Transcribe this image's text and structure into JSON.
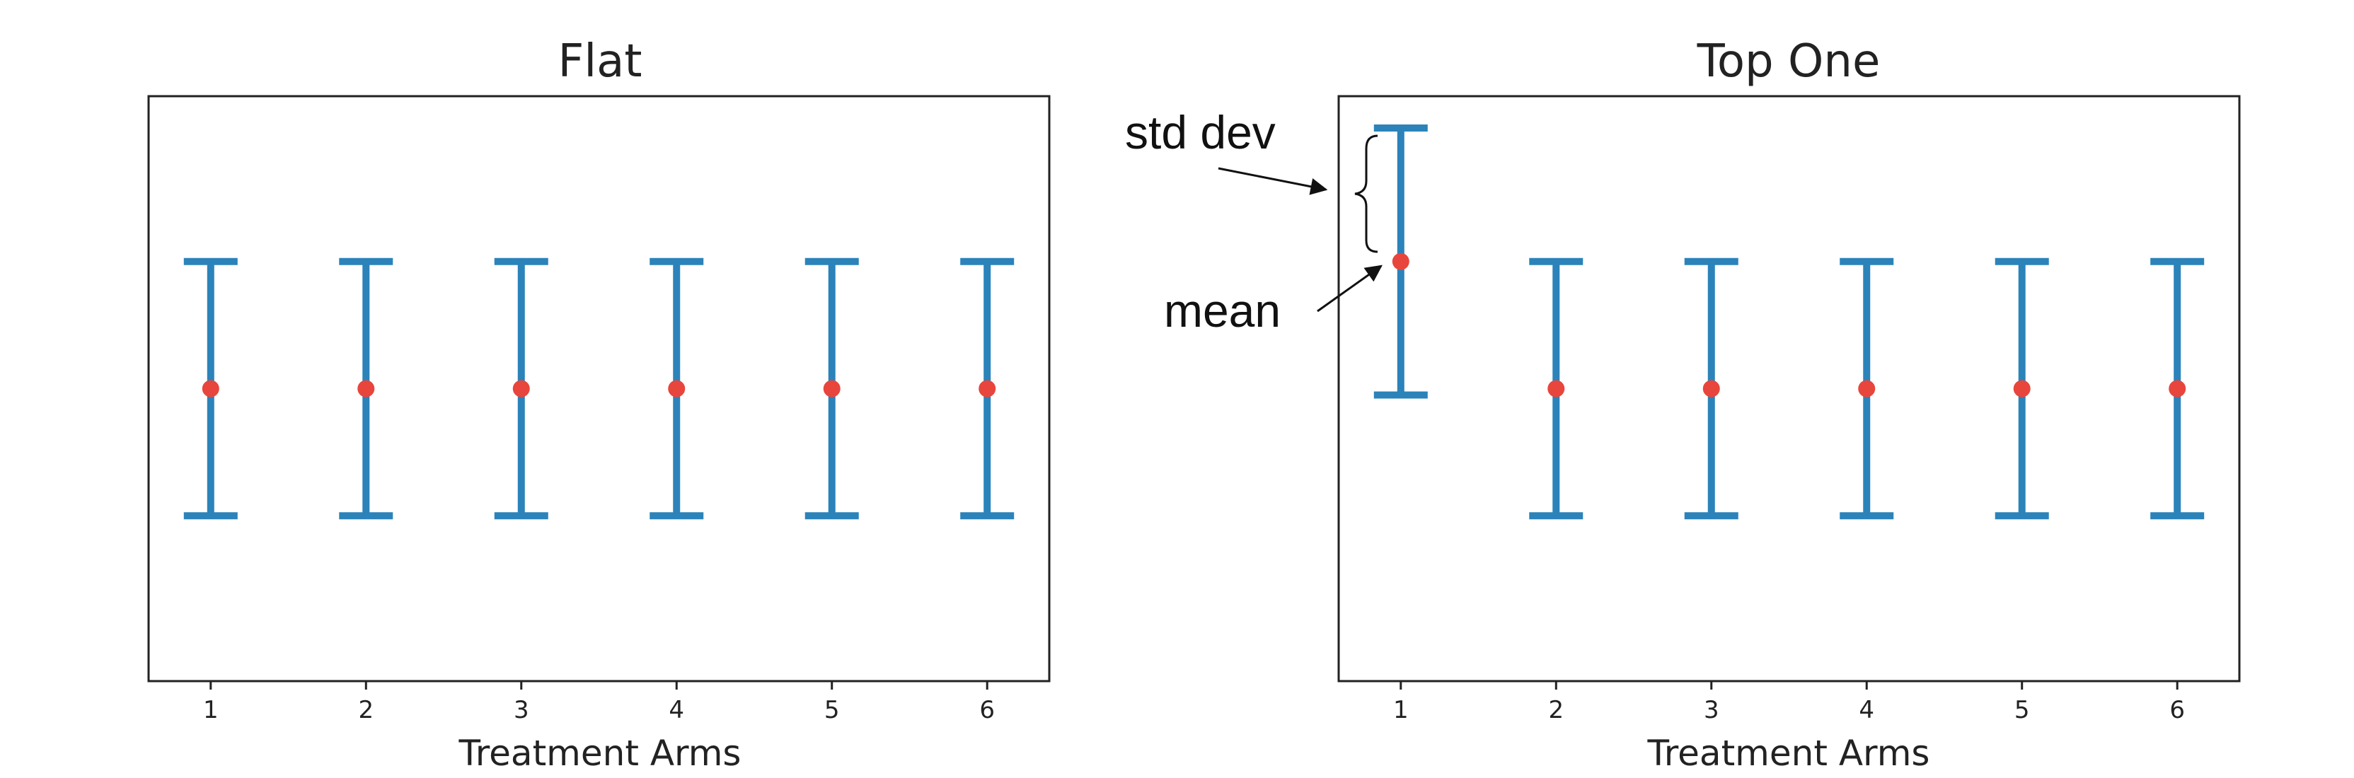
{
  "chart_data": [
    {
      "type": "errorbar",
      "title": "Flat",
      "xlabel": "Treatment Arms",
      "ylabel": "",
      "categories": [
        "1",
        "2",
        "3",
        "4",
        "5",
        "6"
      ],
      "mean": [
        0,
        0,
        0,
        0,
        0,
        0
      ],
      "std_dev": [
        1,
        1,
        1,
        1,
        1,
        1
      ],
      "ylim": [
        -2.3,
        2.3
      ],
      "grid": false,
      "colors": {
        "bar": "#2b83ba",
        "mean": "#e8453c"
      }
    },
    {
      "type": "errorbar",
      "title": "Top One",
      "xlabel": "Treatment Arms",
      "ylabel": "",
      "categories": [
        "1",
        "2",
        "3",
        "4",
        "5",
        "6"
      ],
      "mean": [
        1,
        0,
        0,
        0,
        0,
        0
      ],
      "std_dev": [
        1.05,
        1,
        1,
        1,
        1,
        1
      ],
      "ylim": [
        -2.3,
        2.3
      ],
      "grid": false,
      "colors": {
        "bar": "#2b83ba",
        "mean": "#e8453c"
      }
    }
  ],
  "annotations": {
    "std_dev_label": "std dev",
    "mean_label": "mean"
  }
}
